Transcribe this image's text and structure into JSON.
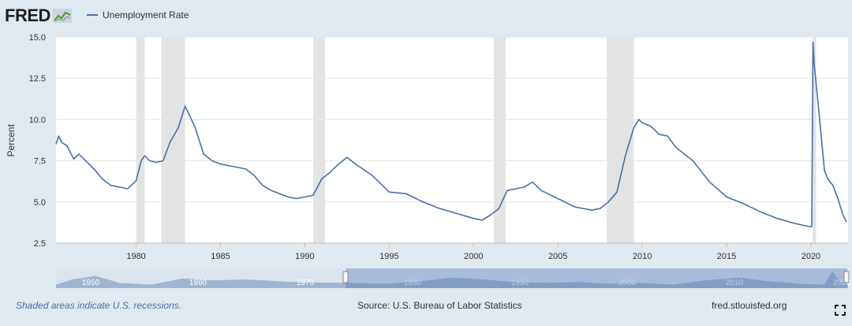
{
  "header": {
    "logo_text": "FRED",
    "logo_icon": "chart-line-icon",
    "legend_label": "Unemployment Rate",
    "series_color": "#4572a7"
  },
  "footer": {
    "recession_note": "Shaded areas indicate U.S. recessions.",
    "source": "Source: U.S. Bureau of Labor Statistics",
    "site": "fred.stlouisfed.org",
    "fullscreen_icon": "fullscreen-icon"
  },
  "chart_data": {
    "type": "line",
    "title": "",
    "xlabel": "",
    "ylabel": "Percent",
    "xlim": [
      1975.25,
      2022.2
    ],
    "ylim": [
      2.5,
      15.0
    ],
    "y_ticks": [
      "2.5",
      "5.0",
      "7.5",
      "10.0",
      "12.5",
      "15.0"
    ],
    "x_ticks": [
      "1980",
      "1985",
      "1990",
      "1995",
      "2000",
      "2005",
      "2010",
      "2015",
      "2020"
    ],
    "grid": true,
    "legend_position": "top-left",
    "recessions": [
      [
        1980.0,
        1980.5
      ],
      [
        1981.5,
        1982.9
      ],
      [
        1990.5,
        1991.2
      ],
      [
        2001.2,
        2001.9
      ],
      [
        2007.9,
        2009.5
      ],
      [
        2020.1,
        2020.3
      ]
    ],
    "series": [
      {
        "name": "Unemployment Rate",
        "color": "#4572a7",
        "x": [
          1975.25,
          1975.4,
          1975.6,
          1975.9,
          1976.3,
          1976.6,
          1977.0,
          1977.5,
          1978.0,
          1978.5,
          1979.0,
          1979.5,
          1980.0,
          1980.3,
          1980.5,
          1980.8,
          1981.2,
          1981.6,
          1982.0,
          1982.5,
          1982.9,
          1983.1,
          1983.5,
          1984.0,
          1984.5,
          1985.0,
          1986.0,
          1986.5,
          1987.0,
          1987.5,
          1988.0,
          1989.0,
          1989.5,
          1990.0,
          1990.5,
          1991.0,
          1991.5,
          1992.0,
          1992.5,
          1993.0,
          1994.0,
          1995.0,
          1996.0,
          1997.0,
          1998.0,
          1999.0,
          2000.0,
          2000.5,
          2001.0,
          2001.5,
          2002.0,
          2002.5,
          2003.0,
          2003.5,
          2004.0,
          2005.0,
          2006.0,
          2007.0,
          2007.5,
          2008.0,
          2008.5,
          2009.0,
          2009.5,
          2009.8,
          2010.0,
          2010.5,
          2011.0,
          2011.5,
          2012.0,
          2013.0,
          2014.0,
          2015.0,
          2016.0,
          2017.0,
          2018.0,
          2019.0,
          2019.9,
          2020.05,
          2020.12,
          2020.2,
          2020.5,
          2020.8,
          2021.0,
          2021.3,
          2021.6,
          2021.9,
          2022.1
        ],
        "y": [
          8.5,
          9.0,
          8.6,
          8.4,
          7.6,
          7.9,
          7.5,
          7.0,
          6.4,
          6.0,
          5.9,
          5.8,
          6.3,
          7.5,
          7.8,
          7.5,
          7.4,
          7.5,
          8.6,
          9.5,
          10.8,
          10.4,
          9.5,
          7.9,
          7.5,
          7.3,
          7.1,
          7.0,
          6.6,
          6.0,
          5.7,
          5.3,
          5.2,
          5.3,
          5.4,
          6.4,
          6.8,
          7.3,
          7.7,
          7.3,
          6.6,
          5.6,
          5.5,
          5.0,
          4.6,
          4.3,
          4.0,
          3.9,
          4.2,
          4.6,
          5.7,
          5.8,
          5.9,
          6.2,
          5.7,
          5.2,
          4.7,
          4.5,
          4.6,
          5.0,
          5.6,
          7.8,
          9.5,
          10.0,
          9.8,
          9.6,
          9.1,
          9.0,
          8.3,
          7.5,
          6.2,
          5.3,
          4.9,
          4.4,
          4.0,
          3.7,
          3.5,
          3.5,
          14.7,
          13.3,
          10.2,
          6.9,
          6.4,
          6.0,
          5.2,
          4.2,
          3.8
        ]
      }
    ]
  },
  "navigator": {
    "labels": [
      "1950",
      "1960",
      "1970",
      "1980",
      "1990",
      "2000",
      "2010",
      "2020"
    ]
  }
}
